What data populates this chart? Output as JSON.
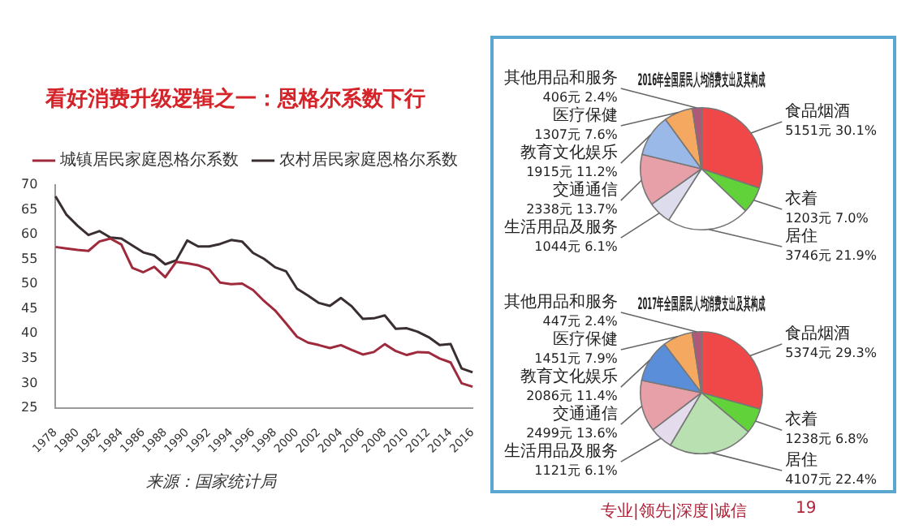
{
  "chart_data": [
    {
      "type": "line",
      "title": "看好消费升级逻辑之一：恩格尔系数下行",
      "categories": [
        "1978",
        null,
        "1980",
        null,
        "1982",
        null,
        "1984",
        null,
        "1986",
        null,
        "1988",
        null,
        "1990",
        null,
        "1992",
        null,
        "1994",
        null,
        "1996",
        null,
        "1998",
        null,
        "2000",
        null,
        "2002",
        null,
        "2004",
        null,
        "2006",
        null,
        "2008",
        null,
        "2010",
        null,
        "2012",
        null,
        "2014",
        null,
        "2016"
      ],
      "series": [
        {
          "name": "城镇居民家庭恩格尔系数",
          "color": "#9e2a3c",
          "values": [
            57.5,
            57.2,
            56.9,
            56.7,
            58.6,
            59.2,
            58.0,
            53.3,
            52.4,
            53.5,
            51.4,
            54.5,
            54.2,
            53.8,
            53.0,
            50.3,
            50.0,
            50.1,
            48.8,
            46.6,
            44.7,
            42.1,
            39.4,
            38.2,
            37.7,
            37.1,
            37.7,
            36.7,
            35.8,
            36.3,
            37.9,
            36.5,
            35.7,
            36.3,
            36.2,
            35.0,
            34.2,
            30.0,
            29.3
          ]
        },
        {
          "name": "农村居民家庭恩格尔系数",
          "color": "#3a2f30",
          "values": [
            67.7,
            64.0,
            61.8,
            59.9,
            60.7,
            59.4,
            59.2,
            57.8,
            56.4,
            55.8,
            54.0,
            54.8,
            58.8,
            57.6,
            57.6,
            58.1,
            58.9,
            58.6,
            56.3,
            55.1,
            53.4,
            52.6,
            49.1,
            47.7,
            46.2,
            45.6,
            47.2,
            45.5,
            43.0,
            43.1,
            43.7,
            41.0,
            41.1,
            40.4,
            39.3,
            37.7,
            37.9,
            33.0,
            32.2
          ]
        }
      ],
      "ylim": [
        25,
        70
      ],
      "yticks": [
        25,
        30,
        35,
        40,
        45,
        50,
        55,
        60,
        65,
        70
      ],
      "legend": "top",
      "annotations": [
        "来源：国家统计局",
        "专业|领先|深度|诚信",
        "19"
      ]
    },
    {
      "type": "pie",
      "title": "2016年全国居民人均消费支出及其构成",
      "categories": [
        "食品烟酒",
        "衣着",
        "居住",
        "生活用品及服务",
        "交通通信",
        "教育文化娱乐",
        "医疗保健",
        "其他用品和服务"
      ],
      "values": [
        5151,
        1203,
        3746,
        1044,
        2338,
        1915,
        1307,
        406
      ],
      "value_labels": [
        "5151元 30.1%",
        "1203元 7.0%",
        "3746元 21.9%",
        "1044元 6.1%",
        "2338元 13.7%",
        "1915元 11.2%",
        "1307元 7.6%",
        "406元 2.4%"
      ],
      "colors": [
        "#f04848",
        "#62d23a",
        "#ffffff",
        "#dcdcec",
        "#e8a0a8",
        "#9ab8e8",
        "#f4a860",
        "#b05878"
      ]
    },
    {
      "type": "pie",
      "title": "2017年全国居民人均消费支出及其构成",
      "categories": [
        "食品烟酒",
        "衣着",
        "居住",
        "生活用品及服务",
        "交通通信",
        "教育文化娱乐",
        "医疗保健",
        "其他用品和服务"
      ],
      "values": [
        5374,
        1238,
        4107,
        1121,
        2499,
        2086,
        1451,
        447
      ],
      "value_labels": [
        "5374元 29.3%",
        "1238元 6.8%",
        "4107元 22.4%",
        "1121元 6.1%",
        "2499元 13.6%",
        "2086元 11.4%",
        "1451元 7.9%",
        "447元 2.4%"
      ],
      "colors": [
        "#f04848",
        "#62d23a",
        "#b8e0b0",
        "#e4dcec",
        "#e8a0a8",
        "#5a8ed8",
        "#f4a860",
        "#b05878"
      ]
    }
  ]
}
